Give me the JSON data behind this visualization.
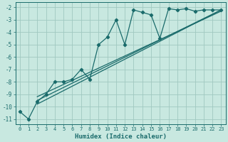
{
  "xlabel": "Humidex (Indice chaleur)",
  "bg_color": "#c8e8e0",
  "grid_color": "#a0c8c0",
  "line_color": "#1a6b6b",
  "xlim": [
    -0.5,
    23.5
  ],
  "ylim": [
    -11.4,
    -1.6
  ],
  "yticks": [
    -11,
    -10,
    -9,
    -8,
    -7,
    -6,
    -5,
    -4,
    -3,
    -2
  ],
  "xticks": [
    0,
    1,
    2,
    3,
    4,
    5,
    6,
    7,
    8,
    9,
    10,
    11,
    12,
    13,
    14,
    15,
    16,
    17,
    18,
    19,
    20,
    21,
    22,
    23
  ],
  "main_x": [
    0,
    1,
    2,
    3,
    4,
    5,
    6,
    7,
    8,
    9,
    10,
    11,
    12,
    13,
    14,
    15,
    16,
    17,
    18,
    19,
    20,
    21,
    22,
    23
  ],
  "main_y": [
    -10.4,
    -11.0,
    -9.6,
    -9.0,
    -8.0,
    -8.0,
    -7.8,
    -7.0,
    -7.8,
    -5.0,
    -4.4,
    -3.0,
    -5.0,
    -2.2,
    -2.4,
    -2.6,
    -4.5,
    -2.1,
    -2.2,
    -2.1,
    -2.3,
    -2.2,
    -2.2,
    -2.2
  ],
  "line2_x": [
    2,
    23
  ],
  "line2_y": [
    -9.5,
    -2.2
  ],
  "line3_x": [
    2,
    23
  ],
  "line3_y": [
    -9.8,
    -2.2
  ],
  "line4_x": [
    2,
    23
  ],
  "line4_y": [
    -9.2,
    -2.3
  ]
}
